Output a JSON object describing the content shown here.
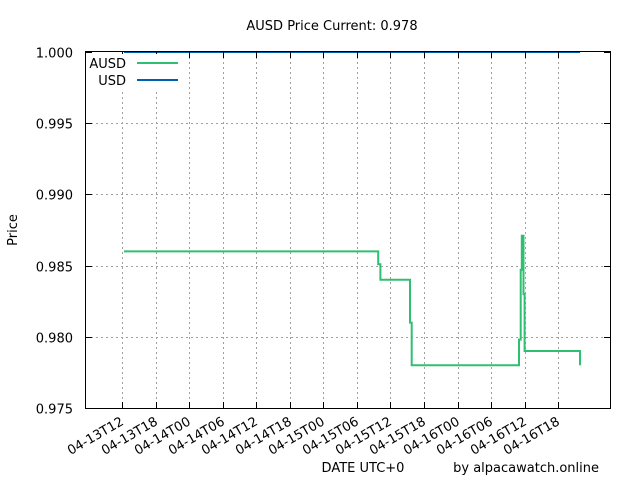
{
  "chart_data": {
    "type": "line",
    "title": "AUSD Price Current: 0.978",
    "xlabel": "DATE UTC+0",
    "ylabel": "Price",
    "credit": "by alpacawatch.online",
    "x_tick_labels": [
      "04-13T12",
      "04-13T18",
      "04-14T00",
      "04-14T06",
      "04-14T12",
      "04-14T18",
      "04-15T00",
      "04-15T06",
      "04-15T12",
      "04-15T18",
      "04-16T00",
      "04-16T06",
      "04-16T12",
      "04-16T18"
    ],
    "y_tick_labels": [
      "0.975",
      "0.980",
      "0.985",
      "0.990",
      "0.995",
      "1.000"
    ],
    "xlim_hours": [
      0,
      78
    ],
    "ylim": [
      0.975,
      1.0
    ],
    "grid": true,
    "legend_position": "top-left",
    "series": [
      {
        "name": "AUSD",
        "color": "#2fbf71",
        "step": true,
        "points": [
          [
            0.3,
            0.986
          ],
          [
            45.8,
            0.986
          ],
          [
            45.8,
            0.9851
          ],
          [
            46.2,
            0.9851
          ],
          [
            46.2,
            0.984
          ],
          [
            51.5,
            0.984
          ],
          [
            51.5,
            0.981
          ],
          [
            51.8,
            0.981
          ],
          [
            51.8,
            0.978
          ],
          [
            71.0,
            0.978
          ],
          [
            71.0,
            0.9798
          ],
          [
            71.3,
            0.9798
          ],
          [
            71.3,
            0.9847
          ],
          [
            71.5,
            0.9847
          ],
          [
            71.5,
            0.9871
          ],
          [
            71.8,
            0.9871
          ],
          [
            71.8,
            0.983
          ],
          [
            72.0,
            0.983
          ],
          [
            72.0,
            0.979
          ],
          [
            82.5,
            0.979
          ],
          [
            82.5,
            0.9785
          ],
          [
            82.8,
            0.9785
          ],
          [
            82.8,
            0.978
          ],
          [
            89.5,
            0.978
          ]
        ]
      },
      {
        "name": "USD",
        "color": "#0060ad",
        "step": false,
        "points": [
          [
            0.3,
            1.0
          ],
          [
            89.5,
            1.0
          ]
        ]
      }
    ]
  }
}
